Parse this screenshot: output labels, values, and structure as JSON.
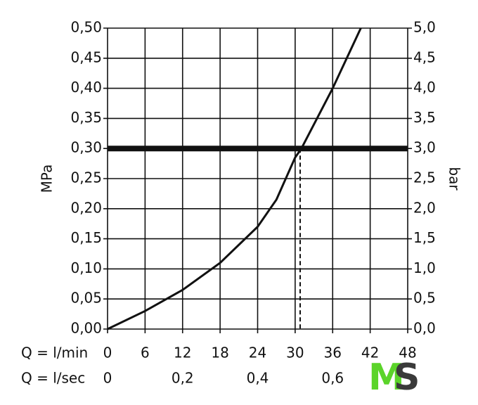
{
  "chart_data": {
    "type": "line",
    "y_label": "MPa",
    "y2_label": "bar",
    "x_row_label": "Q = l/min",
    "x2_row_label": "Q = l/sec",
    "x": [
      0,
      6,
      12,
      18,
      24,
      27,
      30,
      31,
      36,
      40.5
    ],
    "series": [
      {
        "color": "#111111",
        "values": [
          0,
          0.03,
          0.065,
          0.11,
          0.17,
          0.215,
          0.285,
          0.3,
          0.4,
          0.5
        ]
      }
    ],
    "xlim": [
      0,
      48
    ],
    "xticks": [
      0,
      6,
      12,
      18,
      24,
      30,
      36,
      42,
      48
    ],
    "x2lim": [
      0,
      0.8
    ],
    "x2ticks": [
      0,
      {
        "value": 0.2,
        "label": "0,2"
      },
      {
        "value": 0.4,
        "label": "0,4"
      },
      {
        "value": 0.6,
        "label": "0,6"
      }
    ],
    "ylim": [
      0,
      0.5
    ],
    "yticks": [
      {
        "value": 0,
        "label": "0,00"
      },
      {
        "value": 0.05,
        "label": "0,05"
      },
      {
        "value": 0.1,
        "label": "0,10"
      },
      {
        "value": 0.15,
        "label": "0,15"
      },
      {
        "value": 0.2,
        "label": "0,20"
      },
      {
        "value": 0.25,
        "label": "0,25"
      },
      {
        "value": 0.3,
        "label": "0,30"
      },
      {
        "value": 0.35,
        "label": "0,35"
      },
      {
        "value": 0.4,
        "label": "0,40"
      },
      {
        "value": 0.45,
        "label": "0,45"
      },
      {
        "value": 0.5,
        "label": "0,50"
      }
    ],
    "y2lim": [
      0,
      5
    ],
    "y2ticks": [
      {
        "value": 0,
        "label": "0,0"
      },
      {
        "value": 0.5,
        "label": "0,5"
      },
      {
        "value": 1,
        "label": "1,0"
      },
      {
        "value": 1.5,
        "label": "1,5"
      },
      {
        "value": 2,
        "label": "2,0"
      },
      {
        "value": 2.5,
        "label": "2,5"
      },
      {
        "value": 3,
        "label": "3,0"
      },
      {
        "value": 3.5,
        "label": "3,5"
      },
      {
        "value": 4,
        "label": "4,0"
      },
      {
        "value": 4.5,
        "label": "4,5"
      },
      {
        "value": 5,
        "label": "5,0"
      }
    ],
    "reference_pressure": 0.3,
    "reference_flow": 30.8,
    "grid": true
  },
  "logo": [
    "M",
    "S"
  ]
}
